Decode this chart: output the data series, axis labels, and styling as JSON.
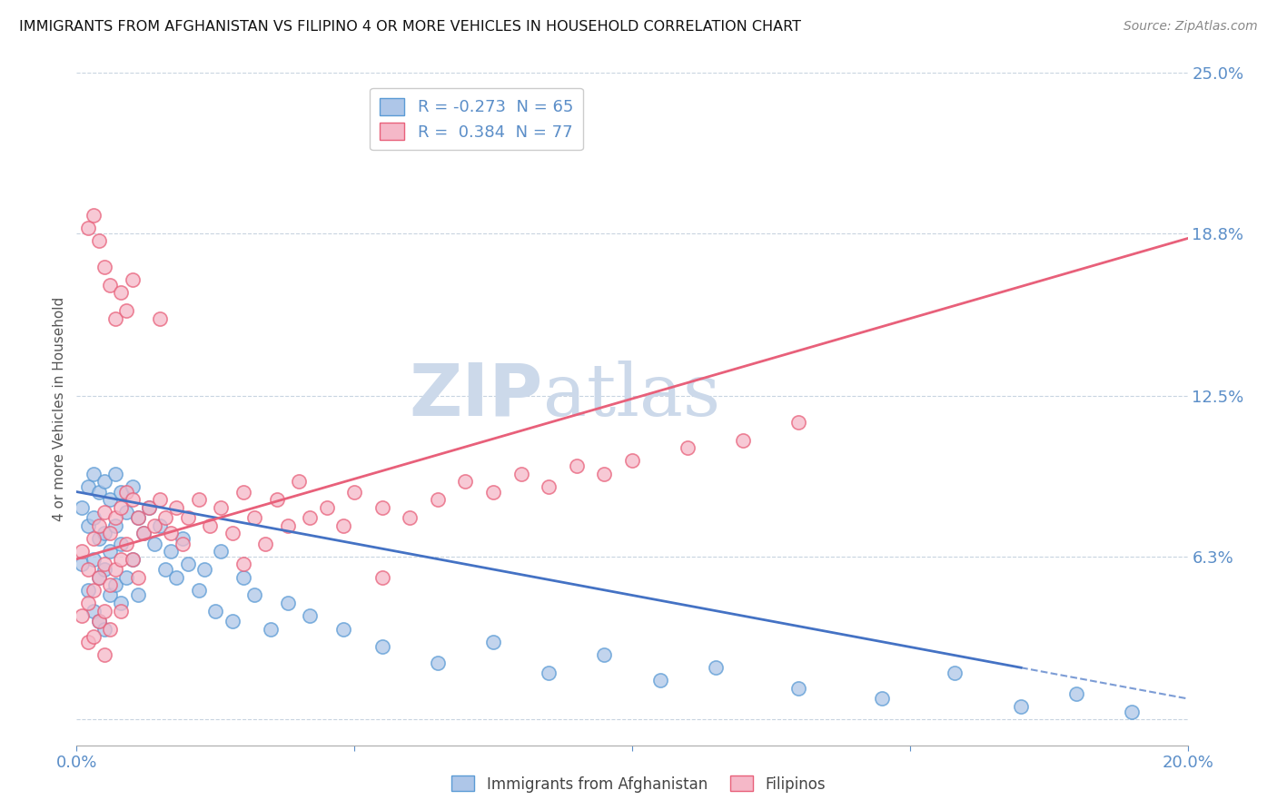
{
  "title": "IMMIGRANTS FROM AFGHANISTAN VS FILIPINO 4 OR MORE VEHICLES IN HOUSEHOLD CORRELATION CHART",
  "source": "Source: ZipAtlas.com",
  "ylabel": "4 or more Vehicles in Household",
  "xlim": [
    0.0,
    0.2
  ],
  "ylim": [
    -0.01,
    0.25
  ],
  "ylim_display": [
    0.0,
    0.25
  ],
  "yticks": [
    0.0,
    0.063,
    0.125,
    0.188,
    0.25
  ],
  "ytick_labels": [
    "",
    "6.3%",
    "12.5%",
    "18.8%",
    "25.0%"
  ],
  "xticks": [
    0.0,
    0.05,
    0.1,
    0.15,
    0.2
  ],
  "xtick_labels": [
    "0.0%",
    "",
    "",
    "",
    "20.0%"
  ],
  "R_blue": -0.273,
  "N_blue": 65,
  "R_pink": 0.384,
  "N_pink": 77,
  "blue_color": "#aec6e8",
  "pink_color": "#f5b8c8",
  "blue_edge_color": "#5b9bd5",
  "pink_edge_color": "#e8607a",
  "blue_line_color": "#4472c4",
  "pink_line_color": "#e8607a",
  "legend_blue_label": "Immigrants from Afghanistan",
  "legend_pink_label": "Filipinos",
  "watermark": "ZIPatlas",
  "watermark_color": "#ccd9ea",
  "blue_scatter_x": [
    0.001,
    0.001,
    0.002,
    0.002,
    0.002,
    0.003,
    0.003,
    0.003,
    0.003,
    0.004,
    0.004,
    0.004,
    0.004,
    0.005,
    0.005,
    0.005,
    0.005,
    0.006,
    0.006,
    0.006,
    0.007,
    0.007,
    0.007,
    0.008,
    0.008,
    0.008,
    0.009,
    0.009,
    0.01,
    0.01,
    0.011,
    0.011,
    0.012,
    0.013,
    0.014,
    0.015,
    0.016,
    0.017,
    0.018,
    0.019,
    0.02,
    0.022,
    0.023,
    0.025,
    0.026,
    0.028,
    0.03,
    0.032,
    0.035,
    0.038,
    0.042,
    0.048,
    0.055,
    0.065,
    0.075,
    0.085,
    0.095,
    0.105,
    0.115,
    0.13,
    0.145,
    0.158,
    0.17,
    0.18,
    0.19
  ],
  "blue_scatter_y": [
    0.082,
    0.06,
    0.09,
    0.075,
    0.05,
    0.095,
    0.078,
    0.062,
    0.042,
    0.088,
    0.07,
    0.055,
    0.038,
    0.092,
    0.072,
    0.058,
    0.035,
    0.085,
    0.065,
    0.048,
    0.095,
    0.075,
    0.052,
    0.088,
    0.068,
    0.045,
    0.08,
    0.055,
    0.09,
    0.062,
    0.078,
    0.048,
    0.072,
    0.082,
    0.068,
    0.075,
    0.058,
    0.065,
    0.055,
    0.07,
    0.06,
    0.05,
    0.058,
    0.042,
    0.065,
    0.038,
    0.055,
    0.048,
    0.035,
    0.045,
    0.04,
    0.035,
    0.028,
    0.022,
    0.03,
    0.018,
    0.025,
    0.015,
    0.02,
    0.012,
    0.008,
    0.018,
    0.005,
    0.01,
    0.003
  ],
  "pink_scatter_x": [
    0.001,
    0.001,
    0.002,
    0.002,
    0.002,
    0.003,
    0.003,
    0.003,
    0.004,
    0.004,
    0.004,
    0.005,
    0.005,
    0.005,
    0.005,
    0.006,
    0.006,
    0.006,
    0.007,
    0.007,
    0.008,
    0.008,
    0.008,
    0.009,
    0.009,
    0.01,
    0.01,
    0.011,
    0.011,
    0.012,
    0.013,
    0.014,
    0.015,
    0.016,
    0.017,
    0.018,
    0.019,
    0.02,
    0.022,
    0.024,
    0.026,
    0.028,
    0.03,
    0.032,
    0.034,
    0.036,
    0.038,
    0.04,
    0.042,
    0.045,
    0.048,
    0.05,
    0.055,
    0.06,
    0.065,
    0.07,
    0.075,
    0.08,
    0.085,
    0.09,
    0.095,
    0.1,
    0.11,
    0.12,
    0.13,
    0.002,
    0.003,
    0.004,
    0.005,
    0.006,
    0.007,
    0.008,
    0.009,
    0.01,
    0.015,
    0.03,
    0.055
  ],
  "pink_scatter_y": [
    0.065,
    0.04,
    0.058,
    0.045,
    0.03,
    0.07,
    0.05,
    0.032,
    0.075,
    0.055,
    0.038,
    0.08,
    0.06,
    0.042,
    0.025,
    0.072,
    0.052,
    0.035,
    0.078,
    0.058,
    0.082,
    0.062,
    0.042,
    0.088,
    0.068,
    0.085,
    0.062,
    0.078,
    0.055,
    0.072,
    0.082,
    0.075,
    0.085,
    0.078,
    0.072,
    0.082,
    0.068,
    0.078,
    0.085,
    0.075,
    0.082,
    0.072,
    0.088,
    0.078,
    0.068,
    0.085,
    0.075,
    0.092,
    0.078,
    0.082,
    0.075,
    0.088,
    0.082,
    0.078,
    0.085,
    0.092,
    0.088,
    0.095,
    0.09,
    0.098,
    0.095,
    0.1,
    0.105,
    0.108,
    0.115,
    0.19,
    0.195,
    0.185,
    0.175,
    0.168,
    0.155,
    0.165,
    0.158,
    0.17,
    0.155,
    0.06,
    0.055
  ]
}
